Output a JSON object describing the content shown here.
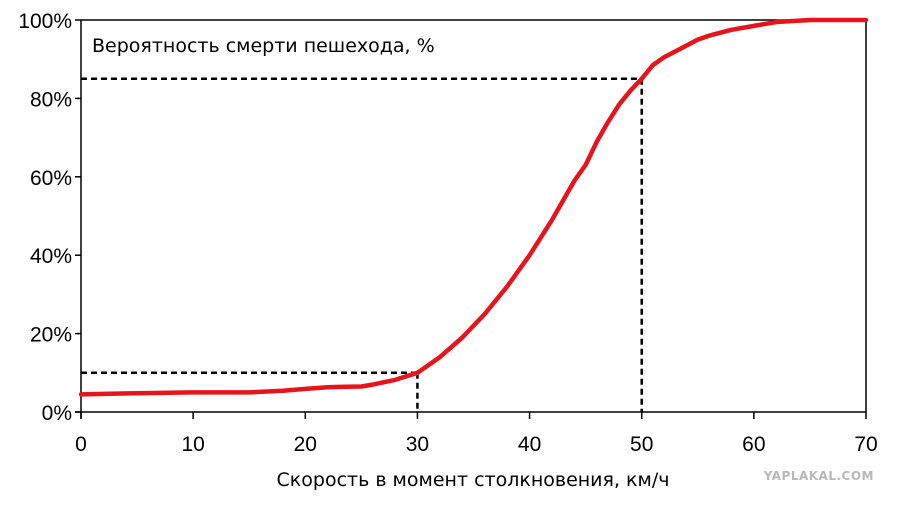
{
  "chart_data": {
    "type": "line",
    "title": "Вероятность смерти пешехода, %",
    "xlabel": "Скорость в момент столкновения, км/ч",
    "ylabel": "",
    "xlim": [
      0,
      70
    ],
    "ylim": [
      0,
      100
    ],
    "x_ticks": [
      0,
      10,
      20,
      30,
      40,
      50,
      60,
      70
    ],
    "y_ticks": [
      0,
      20,
      40,
      60,
      80,
      100
    ],
    "y_tick_labels": [
      "0%",
      "20%",
      "40%",
      "60%",
      "80%",
      "100%"
    ],
    "grid": false,
    "line_color": "#e8141c",
    "series": [
      {
        "x": [
          0,
          5,
          10,
          15,
          18,
          20,
          22,
          23,
          25,
          26,
          28,
          30,
          32,
          34,
          36,
          38,
          40,
          42,
          44,
          45,
          46,
          47,
          48,
          49,
          50,
          51,
          52,
          53,
          54,
          55,
          56,
          58,
          60,
          62,
          65,
          70
        ],
        "values": [
          4.5,
          4.8,
          5,
          5,
          5.4,
          5.9,
          6.3,
          6.4,
          6.5,
          7,
          8.2,
          10,
          14,
          19,
          25,
          32,
          40,
          49,
          59,
          63,
          69,
          74,
          78.5,
          82,
          85,
          88.5,
          90.5,
          92,
          93.5,
          95,
          96,
          97.5,
          98.5,
          99.5,
          100,
          100
        ]
      }
    ],
    "reference_lines": [
      {
        "x": 30,
        "y": 10
      },
      {
        "x": 50,
        "y": 85
      }
    ]
  },
  "watermark": "YAPLAKAL.COM"
}
